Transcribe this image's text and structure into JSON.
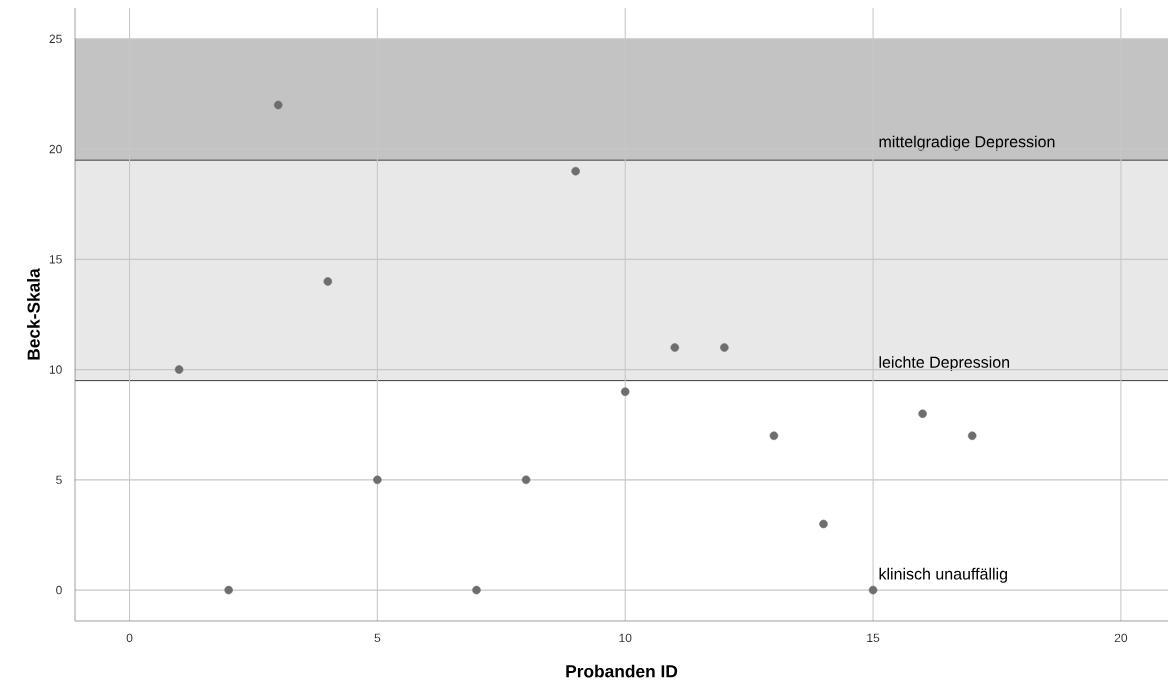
{
  "chart_data": {
    "type": "scatter",
    "xlabel": "Probanden ID",
    "ylabel": "Beck-Skala",
    "x": [
      1,
      2,
      3,
      4,
      5,
      7,
      8,
      9,
      10,
      11,
      12,
      13,
      14,
      15,
      16,
      17
    ],
    "series": [
      {
        "color": "#6e6e6e",
        "values": [
          10,
          0,
          22,
          14,
          5,
          0,
          5,
          19,
          9,
          11,
          11,
          7,
          3,
          0,
          8,
          7
        ]
      }
    ],
    "xlim": [
      -1.1,
      20.95
    ],
    "ylim": [
      -1.4,
      26.4
    ],
    "xticks": [
      0,
      5,
      10,
      15,
      20
    ],
    "yticks": [
      0,
      5,
      10,
      15,
      20,
      25
    ],
    "grid": true,
    "marker": "circle",
    "bands": [
      {
        "axis": "y",
        "from": 19.5,
        "to": 25,
        "label": "mittelgradige Depression",
        "color": "#c3c3c3"
      },
      {
        "axis": "y",
        "from": 9.5,
        "to": 19.5,
        "label": "leichte Depression",
        "color": "#e8e8e8"
      }
    ],
    "ref_lines": [
      {
        "axis": "y",
        "value": 9.5,
        "color": "#505050"
      },
      {
        "axis": "y",
        "value": 19.5,
        "color": "#505050"
      }
    ],
    "annotations": [
      "klinisch unauffällig"
    ]
  }
}
